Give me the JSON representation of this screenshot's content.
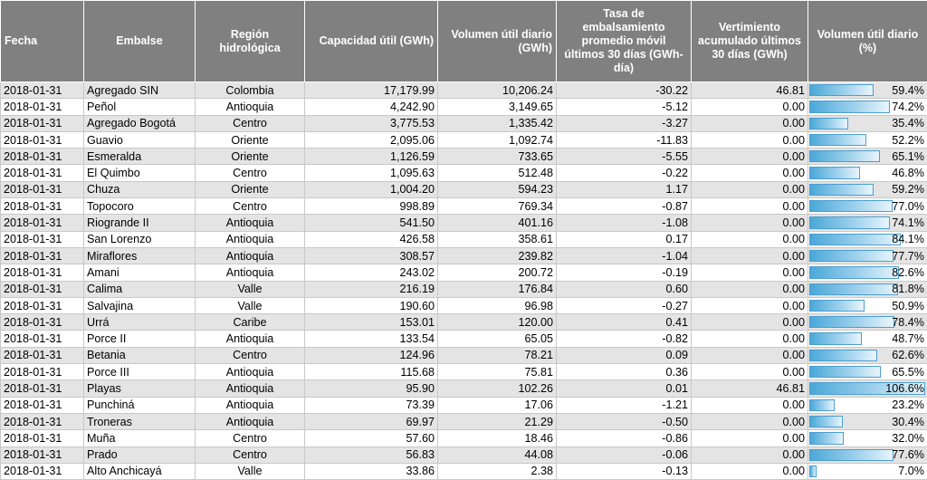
{
  "headers": {
    "fecha": "Fecha",
    "embalse": "Embalse",
    "region": "Región hidrológica",
    "capacidad": "Capacidad útil (GWh)",
    "volumen": "Volumen útil diario (GWh)",
    "tasa": "Tasa de embalsamiento promedio móvil últimos 30 días (GWh-día)",
    "vertimiento": "Vertimiento acumulado últimos 30 días (GWh)",
    "porcentaje": "Volumen útil diario (%)"
  },
  "rows": [
    {
      "fecha": "2018-01-31",
      "embalse": "Agregado SIN",
      "region": "Colombia",
      "capacidad": "17,179.99",
      "volumen": "10,206.24",
      "tasa": "-30.22",
      "vertimiento": "46.81",
      "pct": "59.4%",
      "pct_value": 59.4
    },
    {
      "fecha": "2018-01-31",
      "embalse": "Peñol",
      "region": "Antioquia",
      "capacidad": "4,242.90",
      "volumen": "3,149.65",
      "tasa": "-5.12",
      "vertimiento": "0.00",
      "pct": "74.2%",
      "pct_value": 74.2
    },
    {
      "fecha": "2018-01-31",
      "embalse": "Agregado Bogotá",
      "region": "Centro",
      "capacidad": "3,775.53",
      "volumen": "1,335.42",
      "tasa": "-3.27",
      "vertimiento": "0.00",
      "pct": "35.4%",
      "pct_value": 35.4
    },
    {
      "fecha": "2018-01-31",
      "embalse": "Guavio",
      "region": "Oriente",
      "capacidad": "2,095.06",
      "volumen": "1,092.74",
      "tasa": "-11.83",
      "vertimiento": "0.00",
      "pct": "52.2%",
      "pct_value": 52.2
    },
    {
      "fecha": "2018-01-31",
      "embalse": "Esmeralda",
      "region": "Oriente",
      "capacidad": "1,126.59",
      "volumen": "733.65",
      "tasa": "-5.55",
      "vertimiento": "0.00",
      "pct": "65.1%",
      "pct_value": 65.1
    },
    {
      "fecha": "2018-01-31",
      "embalse": "El Quimbo",
      "region": "Centro",
      "capacidad": "1,095.63",
      "volumen": "512.48",
      "tasa": "-0.22",
      "vertimiento": "0.00",
      "pct": "46.8%",
      "pct_value": 46.8
    },
    {
      "fecha": "2018-01-31",
      "embalse": "Chuza",
      "region": "Oriente",
      "capacidad": "1,004.20",
      "volumen": "594.23",
      "tasa": "1.17",
      "vertimiento": "0.00",
      "pct": "59.2%",
      "pct_value": 59.2
    },
    {
      "fecha": "2018-01-31",
      "embalse": "Topocoro",
      "region": "Centro",
      "capacidad": "998.89",
      "volumen": "769.34",
      "tasa": "-0.87",
      "vertimiento": "0.00",
      "pct": "77.0%",
      "pct_value": 77.0
    },
    {
      "fecha": "2018-01-31",
      "embalse": "Riogrande II",
      "region": "Antioquia",
      "capacidad": "541.50",
      "volumen": "401.16",
      "tasa": "-1.08",
      "vertimiento": "0.00",
      "pct": "74.1%",
      "pct_value": 74.1
    },
    {
      "fecha": "2018-01-31",
      "embalse": "San Lorenzo",
      "region": "Antioquia",
      "capacidad": "426.58",
      "volumen": "358.61",
      "tasa": "0.17",
      "vertimiento": "0.00",
      "pct": "84.1%",
      "pct_value": 84.1
    },
    {
      "fecha": "2018-01-31",
      "embalse": "Miraflores",
      "region": "Antioquia",
      "capacidad": "308.57",
      "volumen": "239.82",
      "tasa": "-1.04",
      "vertimiento": "0.00",
      "pct": "77.7%",
      "pct_value": 77.7
    },
    {
      "fecha": "2018-01-31",
      "embalse": "Amani",
      "region": "Antioquia",
      "capacidad": "243.02",
      "volumen": "200.72",
      "tasa": "-0.19",
      "vertimiento": "0.00",
      "pct": "82.6%",
      "pct_value": 82.6
    },
    {
      "fecha": "2018-01-31",
      "embalse": "Calima",
      "region": "Valle",
      "capacidad": "216.19",
      "volumen": "176.84",
      "tasa": "0.60",
      "vertimiento": "0.00",
      "pct": "81.8%",
      "pct_value": 81.8
    },
    {
      "fecha": "2018-01-31",
      "embalse": "Salvajina",
      "region": "Valle",
      "capacidad": "190.60",
      "volumen": "96.98",
      "tasa": "-0.27",
      "vertimiento": "0.00",
      "pct": "50.9%",
      "pct_value": 50.9
    },
    {
      "fecha": "2018-01-31",
      "embalse": "Urrá",
      "region": "Caribe",
      "capacidad": "153.01",
      "volumen": "120.00",
      "tasa": "0.41",
      "vertimiento": "0.00",
      "pct": "78.4%",
      "pct_value": 78.4
    },
    {
      "fecha": "2018-01-31",
      "embalse": "Porce II",
      "region": "Antioquia",
      "capacidad": "133.54",
      "volumen": "65.05",
      "tasa": "-0.82",
      "vertimiento": "0.00",
      "pct": "48.7%",
      "pct_value": 48.7
    },
    {
      "fecha": "2018-01-31",
      "embalse": "Betania",
      "region": "Centro",
      "capacidad": "124.96",
      "volumen": "78.21",
      "tasa": "0.09",
      "vertimiento": "0.00",
      "pct": "62.6%",
      "pct_value": 62.6
    },
    {
      "fecha": "2018-01-31",
      "embalse": "Porce III",
      "region": "Antioquia",
      "capacidad": "115.68",
      "volumen": "75.81",
      "tasa": "0.36",
      "vertimiento": "0.00",
      "pct": "65.5%",
      "pct_value": 65.5
    },
    {
      "fecha": "2018-01-31",
      "embalse": "Playas",
      "region": "Antioquia",
      "capacidad": "95.90",
      "volumen": "102.26",
      "tasa": "0.01",
      "vertimiento": "46.81",
      "pct": "106.6%",
      "pct_value": 106.6
    },
    {
      "fecha": "2018-01-31",
      "embalse": "Punchiná",
      "region": "Antioquia",
      "capacidad": "73.39",
      "volumen": "17.06",
      "tasa": "-1.21",
      "vertimiento": "0.00",
      "pct": "23.2%",
      "pct_value": 23.2
    },
    {
      "fecha": "2018-01-31",
      "embalse": "Troneras",
      "region": "Antioquia",
      "capacidad": "69.97",
      "volumen": "21.29",
      "tasa": "-0.50",
      "vertimiento": "0.00",
      "pct": "30.4%",
      "pct_value": 30.4
    },
    {
      "fecha": "2018-01-31",
      "embalse": "Muña",
      "region": "Centro",
      "capacidad": "57.60",
      "volumen": "18.46",
      "tasa": "-0.86",
      "vertimiento": "0.00",
      "pct": "32.0%",
      "pct_value": 32.0
    },
    {
      "fecha": "2018-01-31",
      "embalse": "Prado",
      "region": "Centro",
      "capacidad": "56.83",
      "volumen": "44.08",
      "tasa": "-0.06",
      "vertimiento": "0.00",
      "pct": "77.6%",
      "pct_value": 77.6
    },
    {
      "fecha": "2018-01-31",
      "embalse": "Alto Anchicayá",
      "region": "Valle",
      "capacidad": "33.86",
      "volumen": "2.38",
      "tasa": "-0.13",
      "vertimiento": "0.00",
      "pct": "7.0%",
      "pct_value": 7.0
    }
  ],
  "colors": {
    "header_bg": "#808080",
    "row_alt_bg": "#e4e4e4",
    "bar_fill": "#4aa8d8"
  }
}
